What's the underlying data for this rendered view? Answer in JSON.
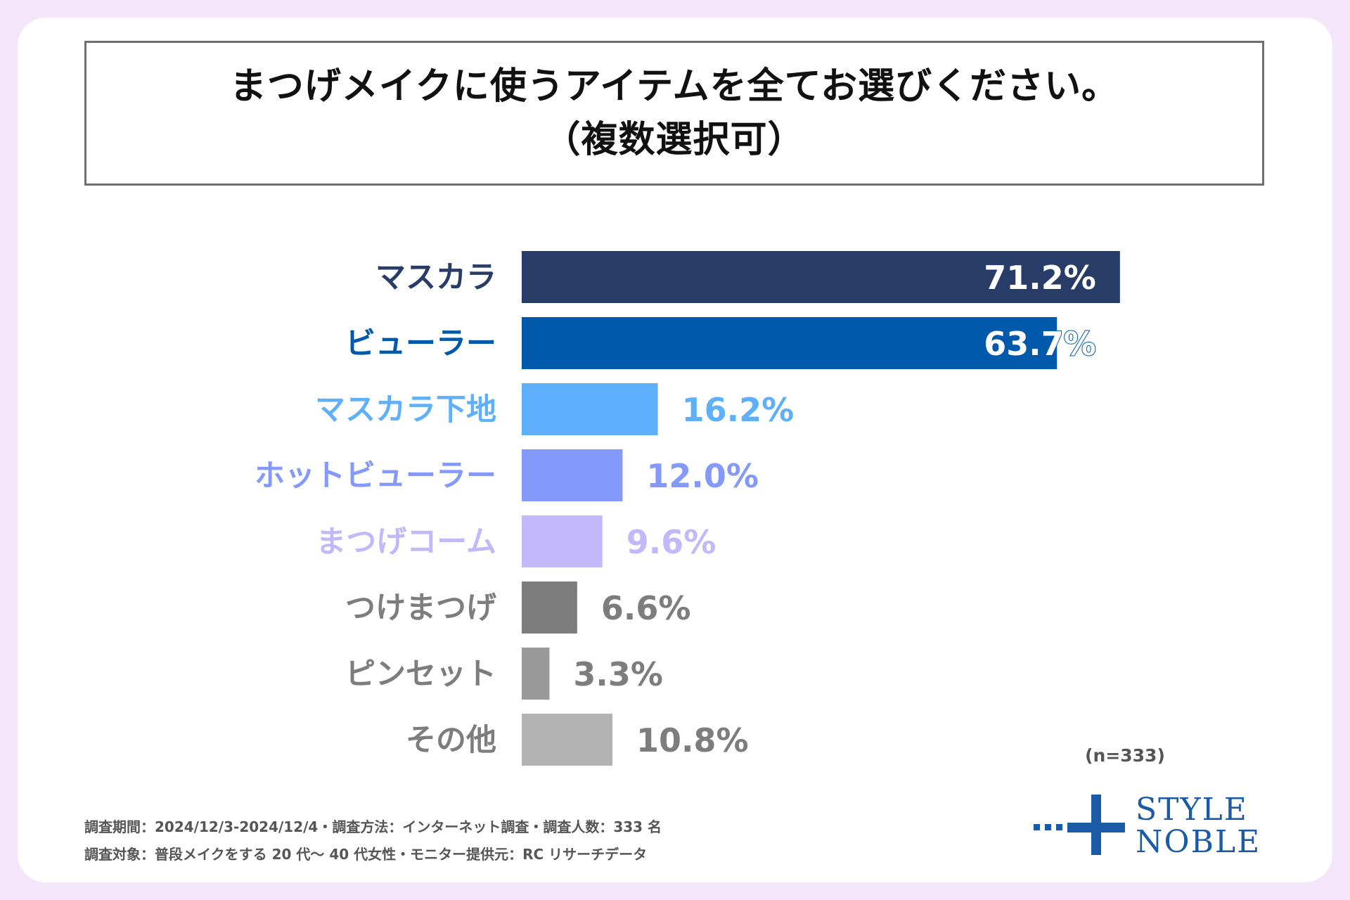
{
  "title": {
    "line1": "まつげメイクに使うアイテムを全てお選びください。",
    "line2": "（複数選択可）"
  },
  "chart_data": {
    "type": "bar",
    "orientation": "horizontal",
    "title": "まつげメイクに使うアイテムを全てお選びください。（複数選択可）",
    "xlabel": "",
    "ylabel": "",
    "unit": "%",
    "xlim": [
      0,
      100
    ],
    "categories": [
      "マスカラ",
      "ビューラー",
      "マスカラ下地",
      "ホットビューラー",
      "まつげコーム",
      "つけまつげ",
      "ピンセット",
      "その他"
    ],
    "values": [
      71.2,
      63.7,
      16.2,
      12.0,
      9.6,
      6.6,
      3.3,
      10.8
    ],
    "value_labels": [
      "71.2%",
      "63.7%",
      "16.2%",
      "12.0%",
      "9.6%",
      "6.6%",
      "3.3%",
      "10.8%"
    ],
    "colors": [
      "#283c68",
      "#0059ab",
      "#5eb0fc",
      "#8499fc",
      "#c3b8fb",
      "#7d7d7d",
      "#999999",
      "#b3b3b3"
    ],
    "label_colors": [
      "#283c68",
      "#0059ab",
      "#5eb0fc",
      "#8499fc",
      "#c3b8fb",
      "#7d7d7d",
      "#7d7d7d",
      "#7d7d7d"
    ],
    "value_label_colors": [
      "#ffffff",
      "#ffffff",
      "#5eb0fc",
      "#8499fc",
      "#c3b8fb",
      "#7d7d7d",
      "#7d7d7d",
      "#7d7d7d"
    ]
  },
  "sample_size": "(n=333)",
  "footer": {
    "line1": "調査期間：2024/12/3-2024/12/4・調査方法：インターネット調査・調査人数：333 名",
    "line2": "調査対象：普段メイクをする 20 代〜 40 代女性・モニター提供元：RC リサーチデータ"
  },
  "logo": {
    "line1": "STYLE",
    "line2": "NOBLE",
    "color": "#1a5aa6"
  }
}
